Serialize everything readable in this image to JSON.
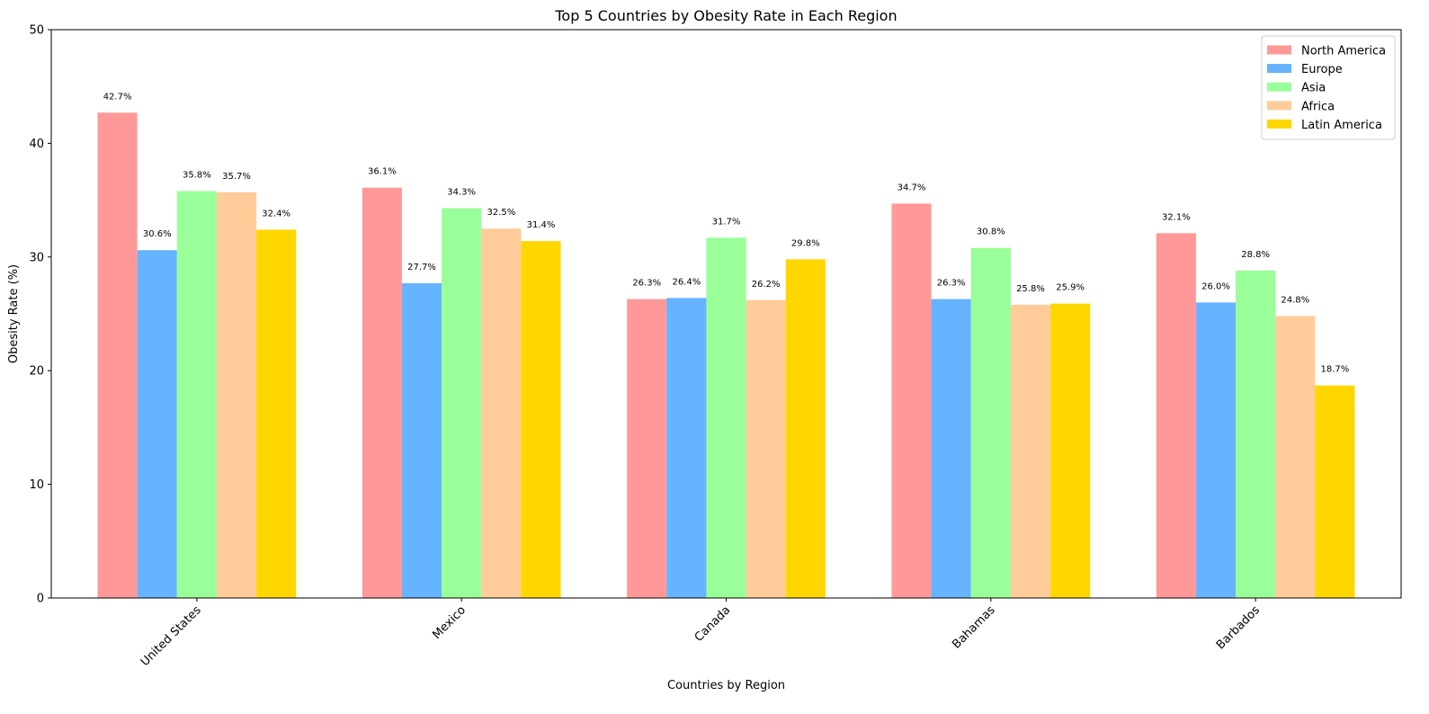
{
  "chart_data": {
    "type": "bar",
    "title": "Top 5 Countries by Obesity Rate in Each Region",
    "xlabel": "Countries by Region",
    "ylabel": "Obesity Rate (%)",
    "ylim": [
      0,
      50
    ],
    "yticks": [
      0,
      10,
      20,
      30,
      40,
      50
    ],
    "categories": [
      "United States",
      "Mexico",
      "Canada",
      "Bahamas",
      "Barbados"
    ],
    "series": [
      {
        "name": "North America",
        "color": "#ff9999",
        "values": [
          42.7,
          36.1,
          26.3,
          34.7,
          32.1
        ]
      },
      {
        "name": "Europe",
        "color": "#66b3ff",
        "values": [
          30.6,
          27.7,
          26.4,
          26.3,
          26.0
        ]
      },
      {
        "name": "Asia",
        "color": "#99ff99",
        "values": [
          35.8,
          34.3,
          31.7,
          30.8,
          28.8
        ]
      },
      {
        "name": "Africa",
        "color": "#ffcc99",
        "values": [
          35.7,
          32.5,
          26.2,
          25.8,
          24.8
        ]
      },
      {
        "name": "Latin America",
        "color": "#ffd700",
        "values": [
          32.4,
          31.4,
          29.8,
          25.9,
          18.7
        ]
      }
    ],
    "value_label_suffix": "%",
    "legend_position": "top-right",
    "grid": false
  }
}
